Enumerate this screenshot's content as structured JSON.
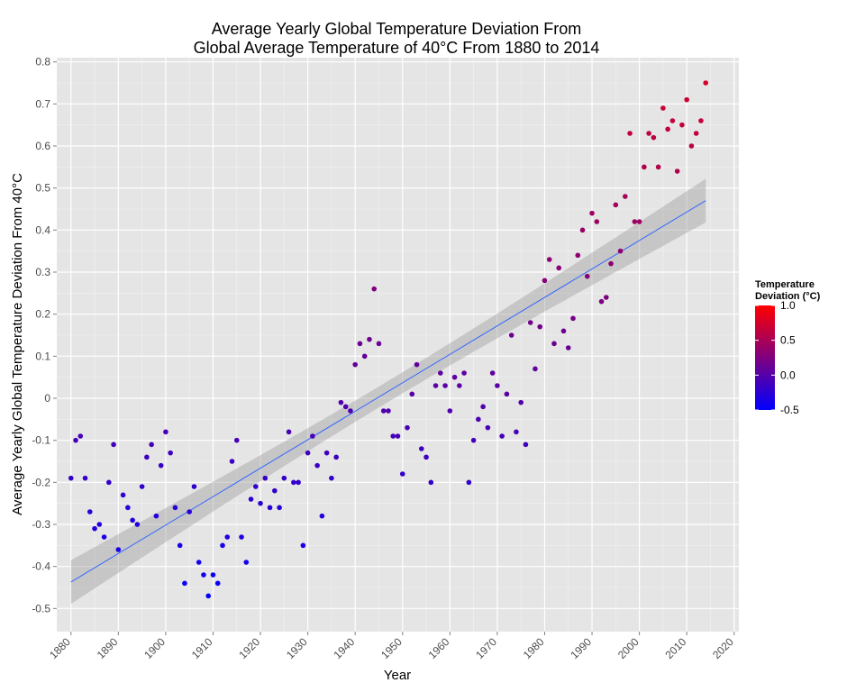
{
  "chart_data": {
    "type": "scatter",
    "title_lines": [
      "Average Yearly Global Temperature Deviation From",
      "Global Average Temperature of 40°C From 1880 to 2014"
    ],
    "xlabel": "Year",
    "ylabel": "Average Yearly Global Temperature Deviation From 40°C",
    "xlim": [
      1877,
      2021
    ],
    "ylim": [
      -0.555,
      0.81
    ],
    "x_ticks": [
      "1880",
      "1890",
      "1900",
      "1910",
      "1920",
      "1930",
      "1940",
      "1950",
      "1960",
      "1970",
      "1980",
      "1990",
      "2000",
      "2010",
      "2020"
    ],
    "y_ticks": [
      "0.8",
      "0.7",
      "0.6",
      "0.5",
      "0.4",
      "0.3",
      "0.2",
      "0.1",
      "0",
      "-0.1",
      "-0.2",
      "-0.3",
      "-0.4",
      "-0.5"
    ],
    "grid": true,
    "legend": {
      "title_lines": [
        "Temperature",
        "Deviation (°C)"
      ],
      "labels": [
        "1.0",
        "0.5",
        "0.0",
        "-0.5"
      ],
      "placement": "right",
      "low_color": "#0000ff",
      "high_color": "#ff0000"
    },
    "colors": {
      "panel_background": "#e5e5e5",
      "grid": "#ffffff",
      "trend_line": "#3366ff",
      "confidence_band": "#999999"
    },
    "trend": {
      "x": [
        1880,
        2014
      ],
      "y": [
        -0.437,
        0.47
      ],
      "ci_halfwidth_at_ends": 0.052,
      "ci_halfwidth_at_center": 0.025
    },
    "points": {
      "x": [
        1880,
        1881,
        1882,
        1883,
        1884,
        1885,
        1886,
        1887,
        1888,
        1889,
        1890,
        1891,
        1892,
        1893,
        1894,
        1895,
        1896,
        1897,
        1898,
        1899,
        1900,
        1901,
        1902,
        1903,
        1904,
        1905,
        1906,
        1907,
        1908,
        1909,
        1910,
        1911,
        1912,
        1913,
        1914,
        1915,
        1916,
        1917,
        1918,
        1919,
        1920,
        1921,
        1922,
        1923,
        1924,
        1925,
        1926,
        1927,
        1928,
        1929,
        1930,
        1931,
        1932,
        1933,
        1934,
        1935,
        1936,
        1937,
        1938,
        1939,
        1940,
        1941,
        1942,
        1943,
        1944,
        1945,
        1946,
        1947,
        1948,
        1949,
        1950,
        1951,
        1952,
        1953,
        1954,
        1955,
        1956,
        1957,
        1958,
        1959,
        1960,
        1961,
        1962,
        1963,
        1964,
        1965,
        1966,
        1967,
        1968,
        1969,
        1970,
        1971,
        1972,
        1973,
        1974,
        1975,
        1976,
        1977,
        1978,
        1979,
        1980,
        1981,
        1982,
        1983,
        1984,
        1985,
        1986,
        1987,
        1988,
        1989,
        1990,
        1991,
        1992,
        1993,
        1994,
        1995,
        1996,
        1997,
        1998,
        1999,
        2000,
        2001,
        2002,
        2003,
        2004,
        2005,
        2006,
        2007,
        2008,
        2009,
        2010,
        2011,
        2012,
        2013,
        2014
      ],
      "y": [
        -0.19,
        -0.1,
        -0.09,
        -0.19,
        -0.27,
        -0.31,
        -0.3,
        -0.33,
        -0.2,
        -0.11,
        -0.36,
        -0.23,
        -0.26,
        -0.29,
        -0.3,
        -0.21,
        -0.14,
        -0.11,
        -0.28,
        -0.16,
        -0.08,
        -0.13,
        -0.26,
        -0.35,
        -0.44,
        -0.27,
        -0.21,
        -0.39,
        -0.42,
        -0.47,
        -0.42,
        -0.44,
        -0.35,
        -0.33,
        -0.15,
        -0.1,
        -0.33,
        -0.39,
        -0.24,
        -0.21,
        -0.25,
        -0.19,
        -0.26,
        -0.22,
        -0.26,
        -0.19,
        -0.08,
        -0.2,
        -0.2,
        -0.35,
        -0.13,
        -0.09,
        -0.16,
        -0.28,
        -0.13,
        -0.19,
        -0.14,
        -0.01,
        -0.02,
        -0.03,
        0.08,
        0.13,
        0.1,
        0.14,
        0.26,
        0.13,
        -0.03,
        -0.03,
        -0.09,
        -0.09,
        -0.18,
        -0.07,
        0.01,
        0.08,
        -0.12,
        -0.14,
        -0.2,
        0.03,
        0.06,
        0.03,
        -0.03,
        0.05,
        0.03,
        0.06,
        -0.2,
        -0.1,
        -0.05,
        -0.02,
        -0.07,
        0.06,
        0.03,
        -0.09,
        0.01,
        0.15,
        -0.08,
        -0.01,
        -0.11,
        0.18,
        0.07,
        0.17,
        0.28,
        0.33,
        0.13,
        0.31,
        0.16,
        0.12,
        0.19,
        0.34,
        0.4,
        0.29,
        0.44,
        0.42,
        0.23,
        0.24,
        0.32,
        0.46,
        0.35,
        0.48,
        0.63,
        0.42,
        0.42,
        0.55,
        0.63,
        0.62,
        0.55,
        0.69,
        0.64,
        0.66,
        0.54,
        0.65,
        0.71,
        0.6,
        0.63,
        0.66,
        0.75
      ]
    }
  }
}
